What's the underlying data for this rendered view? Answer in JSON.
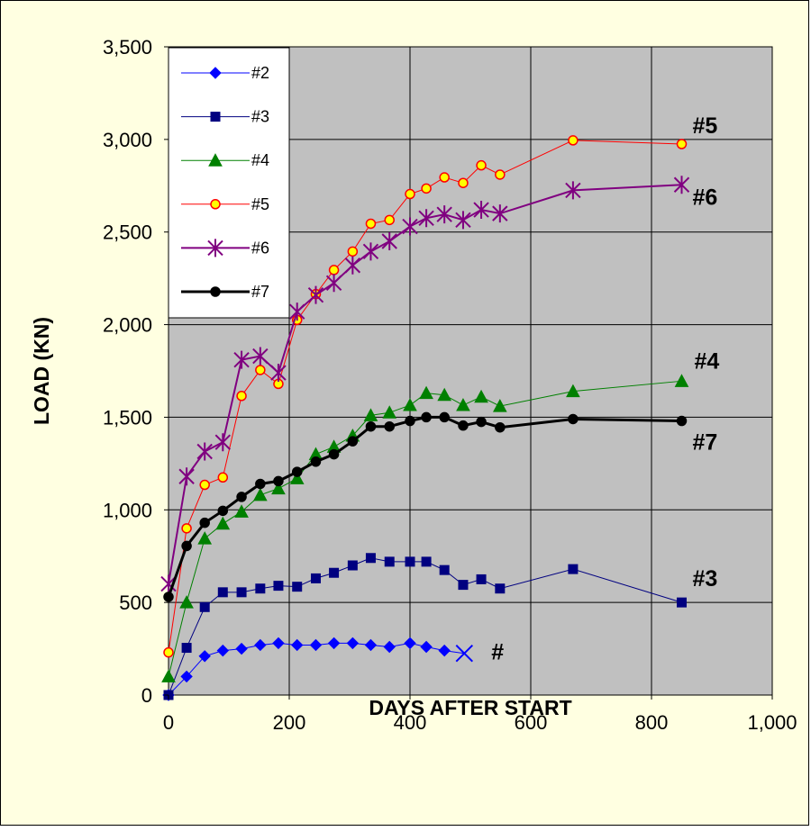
{
  "chart_data": {
    "type": "line",
    "xlabel": "DAYS AFTER START",
    "ylabel": "LOAD  (KN)",
    "xlim": [
      0,
      1000
    ],
    "ylim": [
      0,
      3500
    ],
    "x_ticks": [
      0,
      200,
      400,
      600,
      800,
      1000
    ],
    "x_tick_labels": [
      "0",
      "200",
      "400",
      "600",
      "800",
      "1,000"
    ],
    "y_ticks": [
      0,
      500,
      1000,
      1500,
      2000,
      2500,
      3000,
      3500
    ],
    "y_tick_labels": [
      "0",
      "500",
      "1,000",
      "1,500",
      "2,000",
      "2,500",
      "3,000",
      "3,500"
    ],
    "grid": true,
    "plot_background": "#c0c0c0",
    "legend_position": "top-left",
    "series": [
      {
        "name": "#2",
        "color": "#0000ff",
        "marker": "diamond",
        "line_width": 1,
        "x": [
          0,
          30,
          60,
          90,
          121,
          152,
          182,
          213,
          244,
          274,
          305,
          335,
          366,
          400,
          427,
          457
        ],
        "y": [
          0,
          100,
          210,
          240,
          250,
          270,
          280,
          270,
          270,
          280,
          280,
          270,
          260,
          280,
          260,
          240
        ],
        "end_label": "#",
        "end_point": {
          "x": 490,
          "y": 225,
          "marker": "x"
        }
      },
      {
        "name": "#3",
        "color": "#000080",
        "marker": "square",
        "line_width": 1,
        "x": [
          0,
          30,
          60,
          90,
          121,
          152,
          182,
          213,
          244,
          274,
          305,
          335,
          366,
          400,
          427,
          457,
          488,
          518,
          549,
          670,
          850
        ],
        "y": [
          0,
          255,
          475,
          555,
          555,
          575,
          590,
          585,
          630,
          660,
          700,
          740,
          720,
          720,
          720,
          675,
          595,
          625,
          575,
          680,
          500
        ],
        "end_label": "#3"
      },
      {
        "name": "#4",
        "color": "#008000",
        "marker": "triangle",
        "line_width": 1,
        "x": [
          0,
          30,
          60,
          90,
          121,
          152,
          182,
          213,
          244,
          274,
          305,
          335,
          366,
          400,
          427,
          457,
          488,
          518,
          549,
          670,
          850
        ],
        "y": [
          100,
          500,
          845,
          925,
          990,
          1080,
          1115,
          1170,
          1300,
          1340,
          1400,
          1510,
          1525,
          1565,
          1630,
          1620,
          1565,
          1610,
          1560,
          1640,
          1695
        ],
        "end_label": "#4"
      },
      {
        "name": "#5",
        "color": "#ff0000",
        "marker": "circle",
        "marker_fill": "#ffff00",
        "line_width": 1,
        "x": [
          0,
          30,
          60,
          90,
          121,
          152,
          182,
          213,
          244,
          274,
          305,
          335,
          366,
          400,
          427,
          457,
          488,
          518,
          549,
          670,
          850
        ],
        "y": [
          230,
          900,
          1135,
          1175,
          1615,
          1755,
          1680,
          2025,
          2165,
          2295,
          2395,
          2545,
          2565,
          2705,
          2735,
          2795,
          2765,
          2860,
          2810,
          2995,
          2975
        ],
        "end_label": "#5"
      },
      {
        "name": "#6",
        "color": "#800080",
        "marker": "star",
        "line_width": 2,
        "x": [
          0,
          30,
          60,
          90,
          121,
          152,
          182,
          213,
          244,
          274,
          305,
          335,
          366,
          400,
          427,
          457,
          488,
          518,
          549,
          670,
          850
        ],
        "y": [
          600,
          1180,
          1315,
          1365,
          1810,
          1830,
          1740,
          2070,
          2160,
          2225,
          2320,
          2395,
          2450,
          2530,
          2575,
          2595,
          2565,
          2620,
          2600,
          2725,
          2755
        ],
        "end_label": "#6"
      },
      {
        "name": "#7",
        "color": "#000000",
        "marker": "circle",
        "line_width": 3,
        "x": [
          0,
          30,
          60,
          90,
          121,
          152,
          182,
          213,
          244,
          274,
          305,
          335,
          366,
          400,
          427,
          457,
          488,
          518,
          549,
          670,
          850
        ],
        "y": [
          530,
          805,
          930,
          995,
          1070,
          1140,
          1155,
          1205,
          1260,
          1300,
          1370,
          1450,
          1450,
          1480,
          1500,
          1500,
          1455,
          1475,
          1445,
          1490,
          1480
        ],
        "end_label": "#7"
      }
    ]
  }
}
